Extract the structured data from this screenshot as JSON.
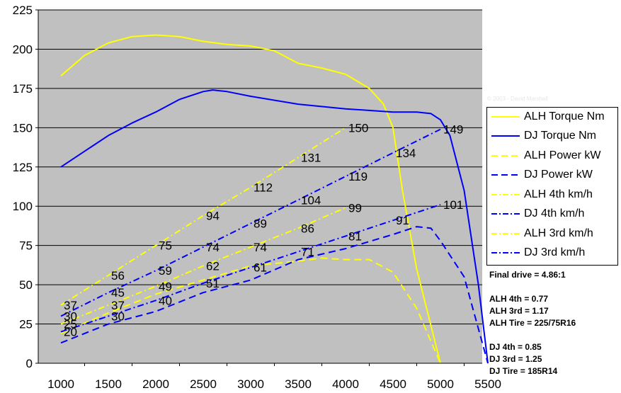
{
  "chart_data": {
    "type": "line",
    "xlim": [
      1000,
      5500
    ],
    "ylim": [
      0,
      225
    ],
    "x_ticks": [
      1000,
      1500,
      2000,
      2500,
      3000,
      3500,
      4000,
      4500,
      5000,
      5500
    ],
    "y_ticks": [
      0,
      25,
      50,
      75,
      100,
      125,
      150,
      175,
      200,
      225
    ],
    "grid": true,
    "legend_position": "right",
    "series": [
      {
        "name": "ALH Torque Nm",
        "color": "#ffff00",
        "dash": "solid",
        "points": [
          [
            1000,
            183
          ],
          [
            1250,
            196
          ],
          [
            1500,
            204
          ],
          [
            1750,
            208
          ],
          [
            2000,
            209
          ],
          [
            2250,
            208
          ],
          [
            2500,
            205
          ],
          [
            2750,
            203
          ],
          [
            3000,
            202
          ],
          [
            3250,
            199
          ],
          [
            3500,
            191
          ],
          [
            3750,
            188
          ],
          [
            4000,
            184
          ],
          [
            4250,
            175
          ],
          [
            4400,
            165
          ],
          [
            4500,
            150
          ],
          [
            4600,
            110
          ],
          [
            4750,
            60
          ],
          [
            5000,
            0
          ]
        ]
      },
      {
        "name": "DJ Torque Nm",
        "color": "#0000ff",
        "dash": "solid",
        "points": [
          [
            1000,
            125
          ],
          [
            1250,
            135
          ],
          [
            1500,
            145
          ],
          [
            1750,
            153
          ],
          [
            2000,
            160
          ],
          [
            2250,
            168
          ],
          [
            2500,
            173
          ],
          [
            2600,
            174
          ],
          [
            2750,
            173
          ],
          [
            3000,
            170
          ],
          [
            3500,
            165
          ],
          [
            4000,
            162
          ],
          [
            4500,
            160
          ],
          [
            4750,
            160
          ],
          [
            4900,
            159
          ],
          [
            5000,
            155
          ],
          [
            5100,
            145
          ],
          [
            5250,
            110
          ],
          [
            5400,
            50
          ],
          [
            5500,
            0
          ]
        ]
      },
      {
        "name": "ALH Power kW",
        "color": "#ffff00",
        "dash": "dash",
        "points": [
          [
            1000,
            19
          ],
          [
            1500,
            32
          ],
          [
            2000,
            44
          ],
          [
            2500,
            53
          ],
          [
            3000,
            62
          ],
          [
            3500,
            65
          ],
          [
            3750,
            67
          ],
          [
            4000,
            66
          ],
          [
            4250,
            66
          ],
          [
            4500,
            58
          ],
          [
            4750,
            35
          ],
          [
            5000,
            0
          ]
        ]
      },
      {
        "name": "DJ Power kW",
        "color": "#0000ff",
        "dash": "dash",
        "points": [
          [
            1000,
            13
          ],
          [
            1500,
            25
          ],
          [
            2000,
            33
          ],
          [
            2500,
            45
          ],
          [
            3000,
            53
          ],
          [
            3500,
            66
          ],
          [
            4000,
            73
          ],
          [
            4500,
            82
          ],
          [
            4750,
            87
          ],
          [
            4900,
            86
          ],
          [
            5000,
            78
          ],
          [
            5250,
            55
          ],
          [
            5500,
            0
          ]
        ]
      },
      {
        "name": "ALH 4th km/h",
        "color": "#ffff00",
        "dash": "dashdot",
        "points": [
          [
            1000,
            37
          ],
          [
            1500,
            56
          ],
          [
            2000,
            75
          ],
          [
            2500,
            94
          ],
          [
            3000,
            112
          ],
          [
            3500,
            131
          ],
          [
            4000,
            150
          ]
        ]
      },
      {
        "name": "DJ 4th km/h",
        "color": "#0000ff",
        "dash": "dashdot",
        "points": [
          [
            1000,
            30
          ],
          [
            1500,
            45
          ],
          [
            2000,
            59
          ],
          [
            2500,
            74
          ],
          [
            3000,
            89
          ],
          [
            3500,
            104
          ],
          [
            4000,
            119
          ],
          [
            4500,
            134
          ],
          [
            5000,
            149
          ]
        ]
      },
      {
        "name": "ALH 3rd km/h",
        "color": "#ffff00",
        "dash": "dashdot",
        "points": [
          [
            1000,
            25
          ],
          [
            1500,
            37
          ],
          [
            2000,
            49
          ],
          [
            2500,
            62
          ],
          [
            3000,
            74
          ],
          [
            3500,
            86
          ],
          [
            4000,
            99
          ]
        ]
      },
      {
        "name": "DJ 3rd km/h",
        "color": "#0000ff",
        "dash": "dashdot",
        "points": [
          [
            1000,
            20
          ],
          [
            1500,
            30
          ],
          [
            2000,
            40
          ],
          [
            2500,
            51
          ],
          [
            3000,
            61
          ],
          [
            3500,
            71
          ],
          [
            4000,
            81
          ],
          [
            4500,
            91
          ],
          [
            5000,
            101
          ]
        ]
      }
    ],
    "data_labels": [
      {
        "x": 1000,
        "y": 37,
        "text": "37"
      },
      {
        "x": 1000,
        "y": 30,
        "text": "30"
      },
      {
        "x": 1000,
        "y": 25,
        "text": "25"
      },
      {
        "x": 1000,
        "y": 20,
        "text": "20"
      },
      {
        "x": 1500,
        "y": 56,
        "text": "56"
      },
      {
        "x": 1500,
        "y": 45,
        "text": "45"
      },
      {
        "x": 1500,
        "y": 37,
        "text": "37"
      },
      {
        "x": 1500,
        "y": 30,
        "text": "30"
      },
      {
        "x": 2000,
        "y": 75,
        "text": "75"
      },
      {
        "x": 2000,
        "y": 59,
        "text": "59"
      },
      {
        "x": 2000,
        "y": 49,
        "text": "49"
      },
      {
        "x": 2000,
        "y": 40,
        "text": "40"
      },
      {
        "x": 2500,
        "y": 94,
        "text": "94"
      },
      {
        "x": 2500,
        "y": 74,
        "text": "74"
      },
      {
        "x": 2500,
        "y": 62,
        "text": "62"
      },
      {
        "x": 2500,
        "y": 51,
        "text": "51"
      },
      {
        "x": 3000,
        "y": 112,
        "text": "112"
      },
      {
        "x": 3000,
        "y": 89,
        "text": "89"
      },
      {
        "x": 3000,
        "y": 74,
        "text": "74"
      },
      {
        "x": 3000,
        "y": 61,
        "text": "61"
      },
      {
        "x": 3500,
        "y": 131,
        "text": "131"
      },
      {
        "x": 3500,
        "y": 104,
        "text": "104"
      },
      {
        "x": 3500,
        "y": 86,
        "text": "86"
      },
      {
        "x": 3500,
        "y": 71,
        "text": "71"
      },
      {
        "x": 4000,
        "y": 150,
        "text": "150"
      },
      {
        "x": 4000,
        "y": 119,
        "text": "119"
      },
      {
        "x": 4000,
        "y": 99,
        "text": "99"
      },
      {
        "x": 4000,
        "y": 81,
        "text": "81"
      },
      {
        "x": 4500,
        "y": 134,
        "text": "134"
      },
      {
        "x": 4500,
        "y": 91,
        "text": "91"
      },
      {
        "x": 5000,
        "y": 149,
        "text": "149"
      },
      {
        "x": 5000,
        "y": 101,
        "text": "101"
      }
    ]
  },
  "legend": [
    {
      "label": "ALH Torque Nm",
      "color": "#ffff00",
      "dash": "solid"
    },
    {
      "label": "DJ Torque Nm",
      "color": "#0000ff",
      "dash": "solid"
    },
    {
      "label": "ALH Power kW",
      "color": "#ffff00",
      "dash": "dash"
    },
    {
      "label": "DJ Power kW",
      "color": "#0000ff",
      "dash": "dash"
    },
    {
      "label": "ALH 4th km/h",
      "color": "#ffff00",
      "dash": "dashdot"
    },
    {
      "label": "DJ 4th km/h",
      "color": "#0000ff",
      "dash": "dashdot"
    },
    {
      "label": "ALH 3rd km/h",
      "color": "#ffff00",
      "dash": "dashdot"
    },
    {
      "label": "DJ 3rd km/h",
      "color": "#0000ff",
      "dash": "dashdot"
    }
  ],
  "notes": {
    "final_drive": "Final drive = 4.86:1",
    "alh_4th": "ALH 4th = 0.77",
    "alh_3rd": "ALH 3rd = 1.17",
    "alh_tire": "ALH Tire = 225/75R16",
    "dj_4th": "DJ 4th = 0.85",
    "dj_3rd": "DJ 3rd = 1.25",
    "dj_tire": "DJ Tire = 185R14"
  },
  "copyright": "© 2003 - David Marshall",
  "colors": {
    "plot_background": "#c0c0c0",
    "gridline": "#000000",
    "alh": "#ffff00",
    "dj": "#0000ff"
  }
}
